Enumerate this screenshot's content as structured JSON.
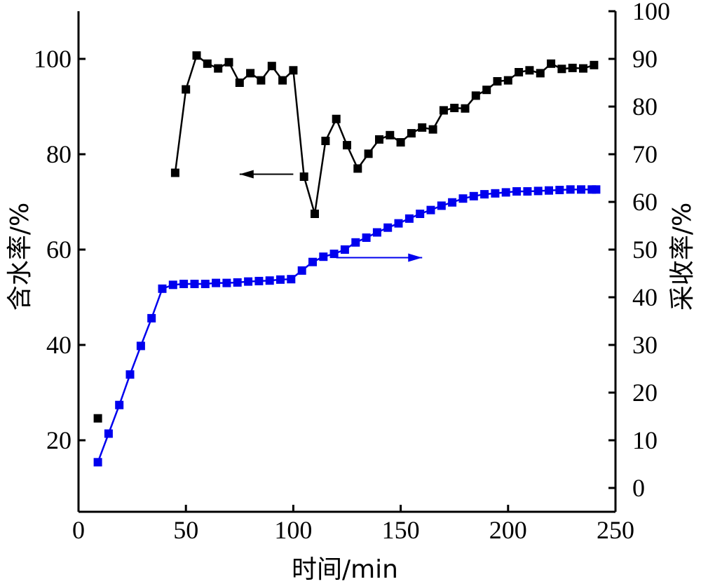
{
  "chart_data": {
    "type": "line",
    "xlabel": "时间/min",
    "ylabel_left": "含水率/%",
    "ylabel_right": "采收率/%",
    "xlim": [
      0,
      250
    ],
    "ylim_left": [
      5,
      110
    ],
    "ylim_right": [
      -5,
      100
    ],
    "x_ticks": [
      0,
      50,
      100,
      150,
      200,
      250
    ],
    "y_left_ticks": [
      20,
      40,
      60,
      80,
      100
    ],
    "y_right_ticks": [
      0,
      10,
      20,
      30,
      40,
      50,
      60,
      70,
      80,
      90,
      100
    ],
    "grid": false,
    "legend": "none",
    "series": [
      {
        "axis": "left",
        "color": "#000000",
        "marker": "square",
        "points": [
          [
            9,
            24.6
          ],
          [
            45,
            76.1
          ],
          [
            50,
            93.6
          ],
          [
            55,
            100.7
          ],
          [
            60,
            99.0
          ],
          [
            65,
            98.0
          ],
          [
            70,
            99.3
          ],
          [
            75,
            95.0
          ],
          [
            80,
            97.0
          ],
          [
            85,
            95.5
          ],
          [
            90,
            98.5
          ],
          [
            95,
            95.5
          ],
          [
            100,
            97.6
          ],
          [
            105,
            75.3
          ],
          [
            110,
            67.5
          ],
          [
            115,
            82.8
          ],
          [
            120,
            87.4
          ],
          [
            125,
            81.9
          ],
          [
            130,
            77.0
          ],
          [
            135,
            80.1
          ],
          [
            140,
            83.1
          ],
          [
            145,
            84.0
          ],
          [
            150,
            82.5
          ],
          [
            155,
            84.4
          ],
          [
            160,
            85.6
          ],
          [
            165,
            85.2
          ],
          [
            170,
            89.2
          ],
          [
            175,
            89.7
          ],
          [
            180,
            89.6
          ],
          [
            185,
            92.3
          ],
          [
            190,
            93.5
          ],
          [
            195,
            95.3
          ],
          [
            200,
            95.5
          ],
          [
            205,
            97.2
          ],
          [
            210,
            97.6
          ],
          [
            215,
            97.0
          ],
          [
            220,
            99.0
          ],
          [
            225,
            97.9
          ],
          [
            230,
            98.1
          ],
          [
            235,
            98.0
          ],
          [
            240,
            98.7
          ]
        ]
      },
      {
        "axis": "right",
        "color": "#0000ee",
        "marker": "square",
        "points": [
          [
            9,
            5.4
          ],
          [
            14,
            11.4
          ],
          [
            19,
            17.4
          ],
          [
            24,
            23.8
          ],
          [
            29,
            29.8
          ],
          [
            34,
            35.6
          ],
          [
            39,
            41.8
          ],
          [
            44,
            42.6
          ],
          [
            49,
            42.8
          ],
          [
            54,
            42.8
          ],
          [
            59,
            42.8
          ],
          [
            64,
            43.0
          ],
          [
            69,
            43.0
          ],
          [
            74,
            43.1
          ],
          [
            79,
            43.3
          ],
          [
            84,
            43.4
          ],
          [
            89,
            43.5
          ],
          [
            94,
            43.7
          ],
          [
            99,
            43.8
          ],
          [
            104,
            45.6
          ],
          [
            109,
            47.4
          ],
          [
            114,
            48.5
          ],
          [
            119,
            49.1
          ],
          [
            124,
            50.0
          ],
          [
            129,
            51.5
          ],
          [
            134,
            52.5
          ],
          [
            139,
            53.6
          ],
          [
            144,
            54.6
          ],
          [
            149,
            55.5
          ],
          [
            154,
            56.5
          ],
          [
            159,
            57.5
          ],
          [
            164,
            58.3
          ],
          [
            169,
            59.2
          ],
          [
            174,
            59.9
          ],
          [
            179,
            60.7
          ],
          [
            184,
            61.2
          ],
          [
            189,
            61.6
          ],
          [
            194,
            61.8
          ],
          [
            199,
            62.0
          ],
          [
            204,
            62.2
          ],
          [
            209,
            62.2
          ],
          [
            214,
            62.3
          ],
          [
            219,
            62.4
          ],
          [
            224,
            62.5
          ],
          [
            229,
            62.6
          ],
          [
            234,
            62.6
          ],
          [
            239,
            62.6
          ],
          [
            241,
            62.6
          ]
        ]
      }
    ],
    "annotations": [
      {
        "type": "arrow",
        "direction": "left",
        "color": "#000000",
        "axis": "left",
        "y": 75.8,
        "x_from": 100,
        "x_to": 75
      },
      {
        "type": "arrow",
        "direction": "right",
        "color": "#0000ee",
        "axis": "right",
        "y": 48.3,
        "x_from": 120,
        "x_to": 160
      }
    ]
  }
}
